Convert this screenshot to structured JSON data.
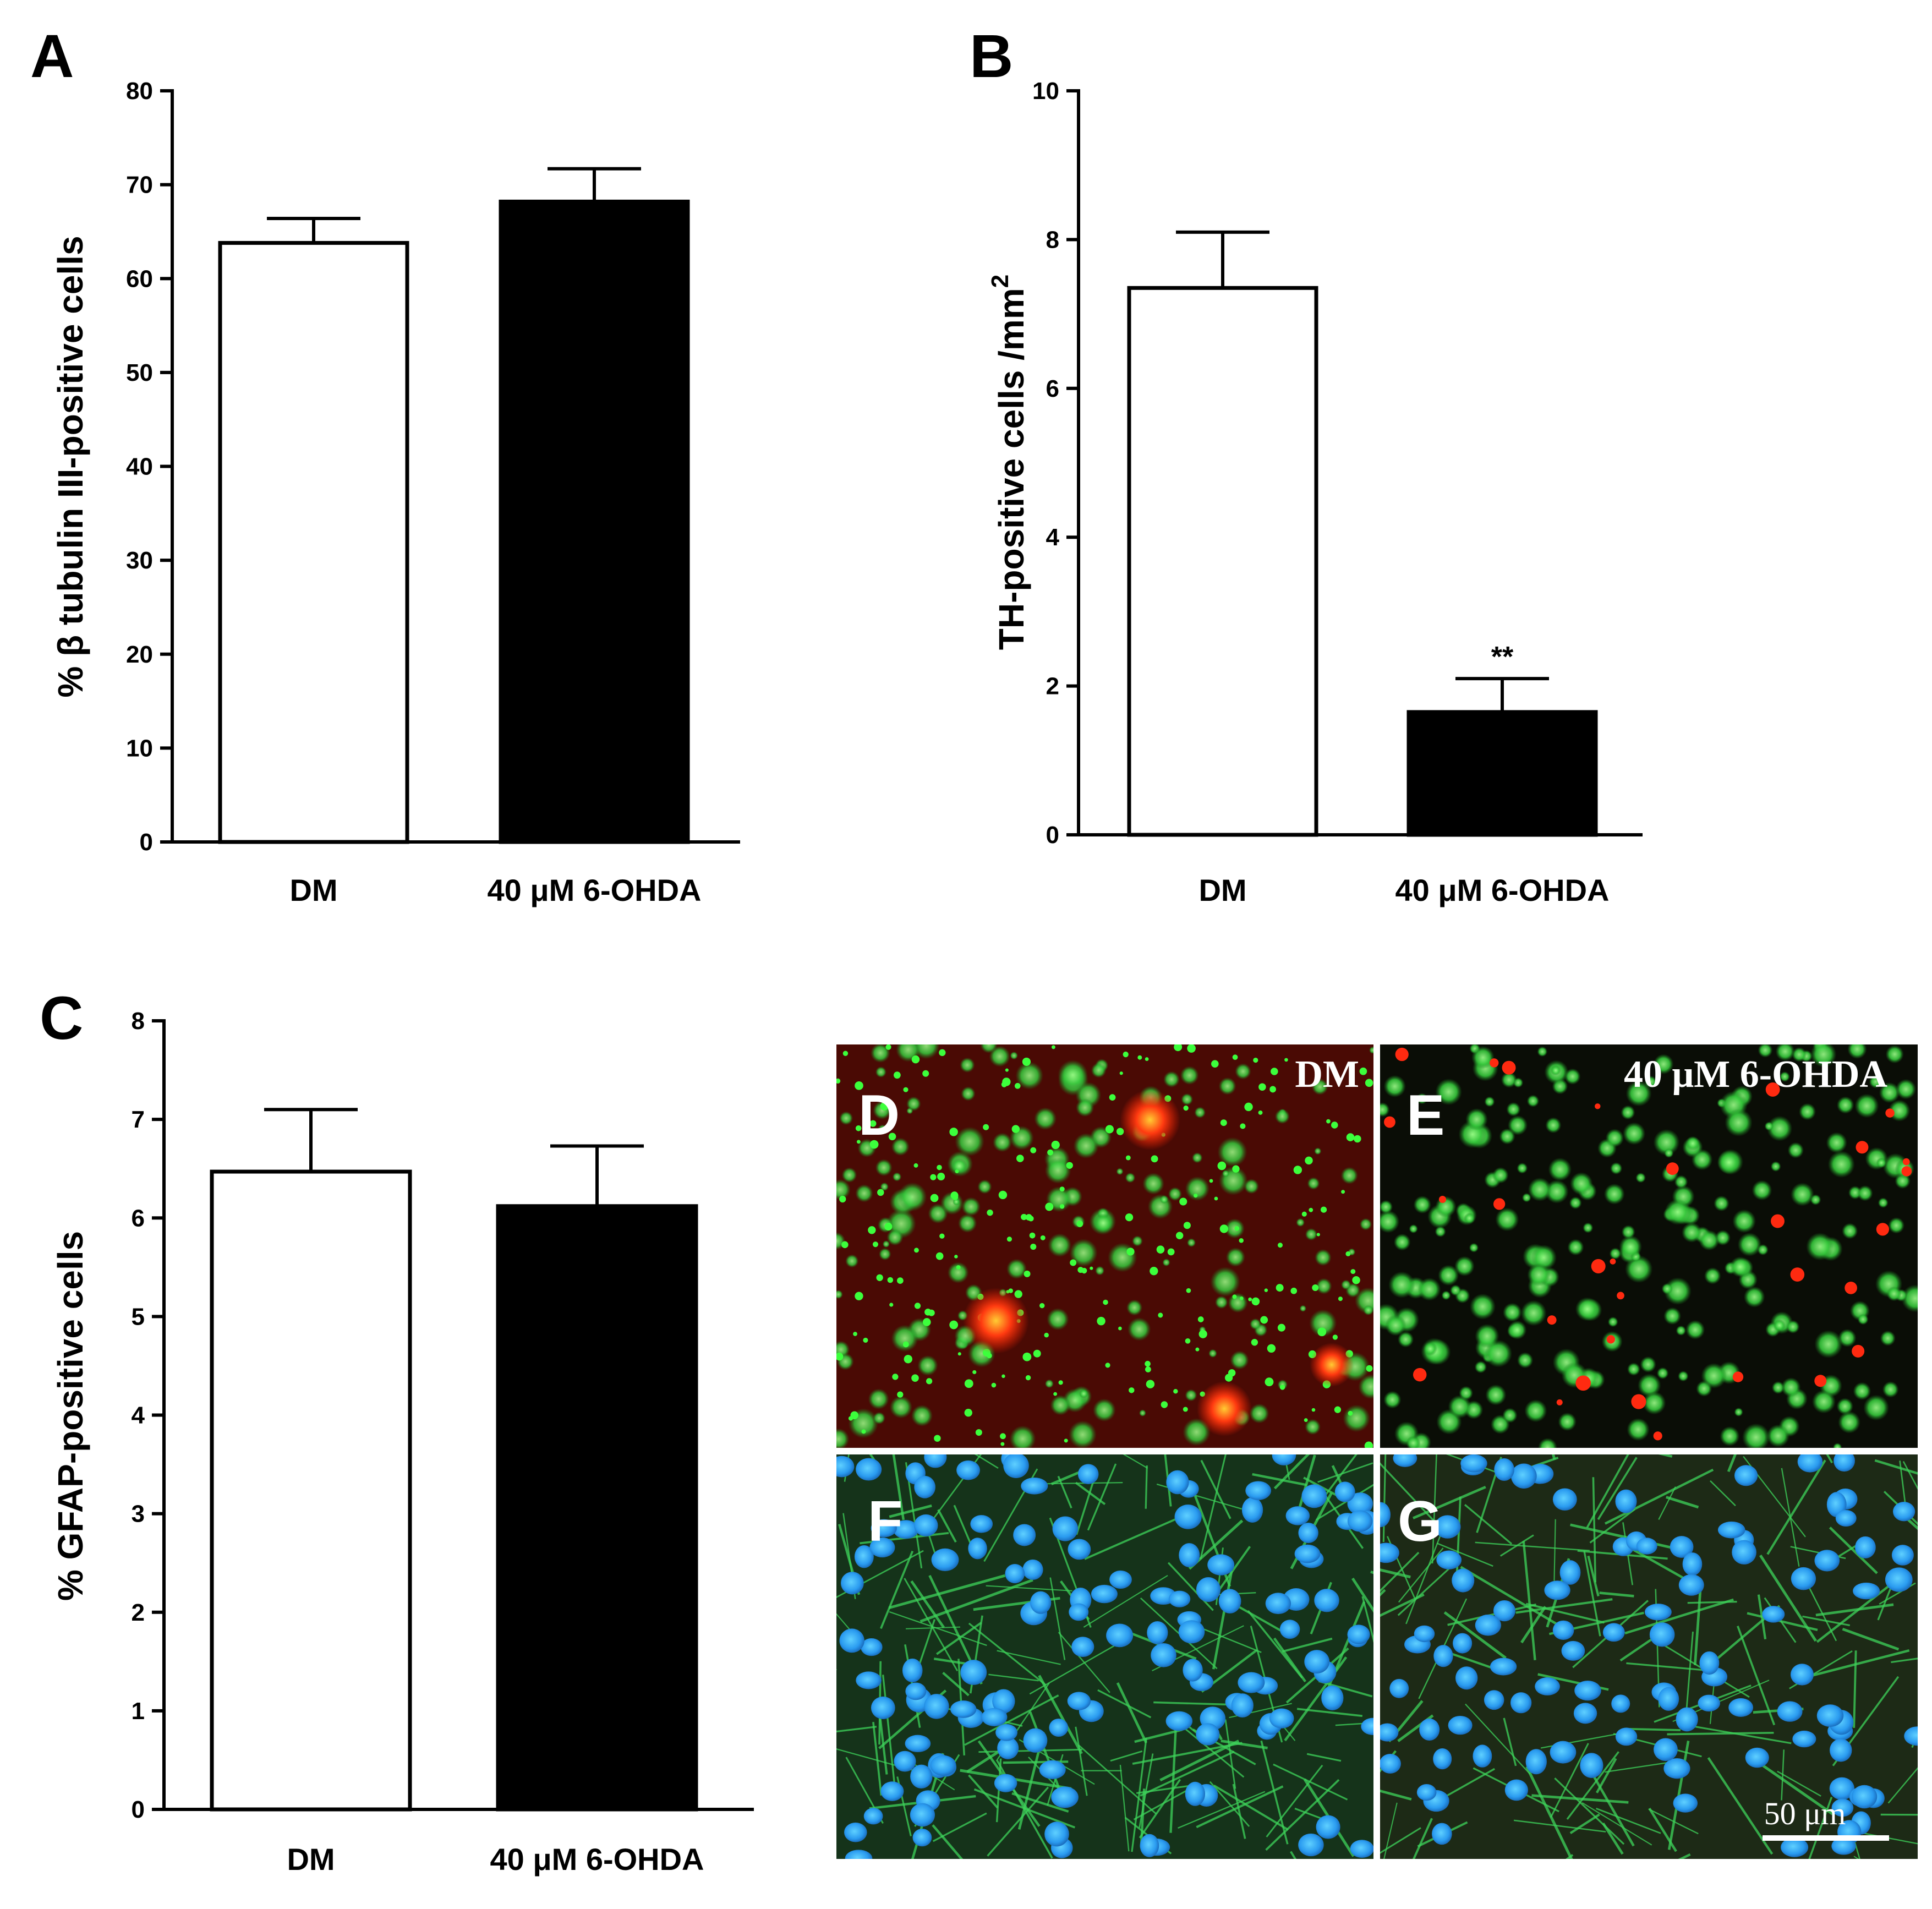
{
  "colors": {
    "control_fill": "#ffffff",
    "treated_fill": "#000000",
    "stroke": "#000000",
    "axis": "#000000"
  },
  "chart_data": [
    {
      "panel": "A",
      "type": "bar",
      "categories": [
        "DM",
        "40 μM 6-OHDA"
      ],
      "values": [
        63.8,
        68.2
      ],
      "errors": [
        2.6,
        3.5
      ],
      "ylabel": "% β tubulin III-positive cells",
      "ylim": [
        0,
        80
      ],
      "yticks": [
        0,
        10,
        20,
        30,
        40,
        50,
        60,
        70,
        80
      ],
      "significance": [
        "",
        ""
      ]
    },
    {
      "panel": "B",
      "type": "bar",
      "categories": [
        "DM",
        "40 μM 6-OHDA"
      ],
      "values": [
        7.35,
        1.65
      ],
      "errors": [
        0.75,
        0.45
      ],
      "ylabel": "TH-positive cells /mm",
      "ylabel_superscript": "2",
      "ylim": [
        0,
        10
      ],
      "yticks": [
        0,
        2,
        4,
        6,
        8,
        10
      ],
      "significance": [
        "",
        "**"
      ]
    },
    {
      "panel": "C",
      "type": "bar",
      "categories": [
        "DM",
        "40 μM 6-OHDA"
      ],
      "values": [
        6.47,
        6.12
      ],
      "errors": [
        0.63,
        0.61
      ],
      "ylabel": "% GFAP-positive cells",
      "ylim": [
        0,
        8
      ],
      "yticks": [
        0,
        1,
        2,
        3,
        4,
        5,
        6,
        7,
        8
      ],
      "significance": [
        "",
        ""
      ]
    }
  ],
  "micrographs": {
    "D": {
      "letter": "D",
      "caption": "DM"
    },
    "E": {
      "letter": "E",
      "caption": "40 μM 6-OHDA"
    },
    "F": {
      "letter": "F",
      "caption": ""
    },
    "G": {
      "letter": "G",
      "caption": ""
    },
    "scale_bar_label": "50 μm"
  }
}
